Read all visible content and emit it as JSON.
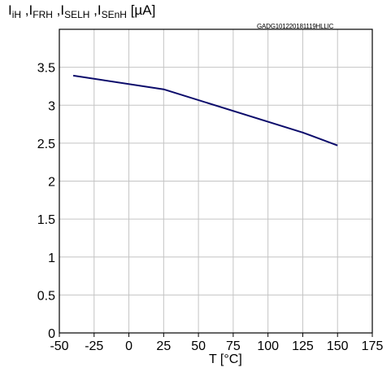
{
  "chart_data": {
    "type": "line",
    "ylabel_parts": [
      {
        "base": "I",
        "sub": "iH"
      },
      {
        "base": " ,I",
        "sub": "FRH"
      },
      {
        "base": " ,I",
        "sub": "SELH"
      },
      {
        "base": " ,I",
        "sub": "SEnH"
      },
      {
        "base": " [µA]",
        "sub": ""
      }
    ],
    "annotation": "GADG101220181119HLLIC",
    "xlabel": "T [°C]",
    "xlim": [
      -50,
      175
    ],
    "ylim": [
      0,
      4
    ],
    "xticks": [
      -50,
      -25,
      0,
      25,
      50,
      75,
      100,
      125,
      150,
      175
    ],
    "xtick_labels": [
      "-50",
      "-25",
      "0",
      "25",
      "50",
      "75",
      "100",
      "125",
      "150",
      "175"
    ],
    "yticks": [
      0,
      0.5,
      1,
      1.5,
      2,
      2.5,
      3,
      3.5
    ],
    "ytick_labels": [
      "0",
      "0.5",
      "1",
      "1.5",
      "2",
      "2.5",
      "3",
      "3.5"
    ],
    "grid": true,
    "line_color": "#0b0b6b",
    "series": [
      {
        "x": [
          -40,
          25,
          125,
          150
        ],
        "values": [
          3.39,
          3.21,
          2.64,
          2.47
        ]
      }
    ]
  }
}
